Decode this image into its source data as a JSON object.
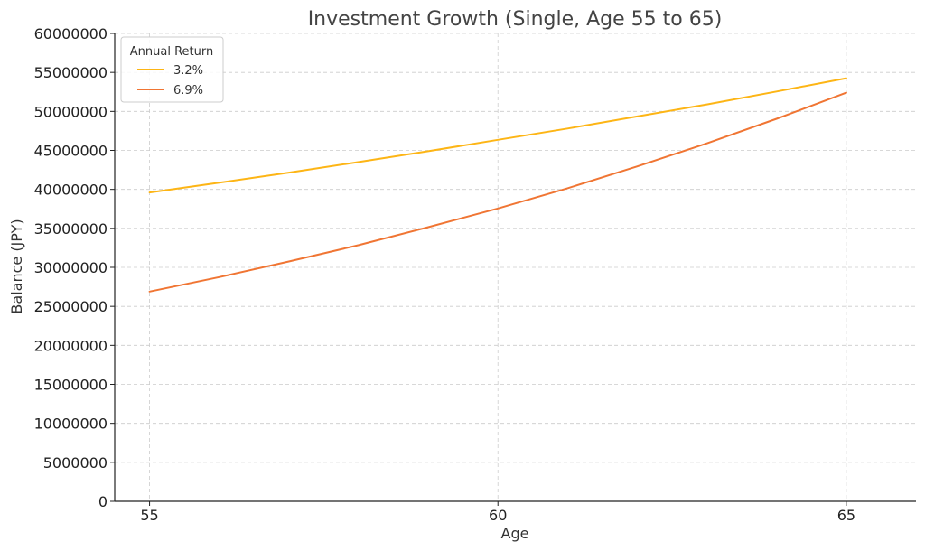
{
  "chart_data": {
    "type": "line",
    "title": "Investment Growth (Single, Age 55 to 65)",
    "xlabel": "Age",
    "ylabel": "Balance (JPY)",
    "xlim": [
      54.5,
      66.0
    ],
    "ylim": [
      0,
      60000000
    ],
    "xticks": [
      55,
      60,
      65
    ],
    "yticks": [
      0,
      5000000,
      10000000,
      15000000,
      20000000,
      25000000,
      30000000,
      35000000,
      40000000,
      45000000,
      50000000,
      55000000,
      60000000
    ],
    "grid": true,
    "legend": {
      "title": "Annual Return",
      "placement": "top-left"
    },
    "series": [
      {
        "name": "3.2%",
        "color": "#FDB515",
        "x": [
          55,
          56,
          57,
          58,
          59,
          60,
          61,
          62,
          63,
          64,
          65
        ],
        "y": [
          39600000,
          40850000,
          42150000,
          43500000,
          44900000,
          46350000,
          47800000,
          49350000,
          50900000,
          52550000,
          54250000
        ]
      },
      {
        "name": "6.9%",
        "color": "#F07533",
        "x": [
          55,
          56,
          57,
          58,
          59,
          60,
          61,
          62,
          63,
          64,
          65
        ],
        "y": [
          26900000,
          28750000,
          30750000,
          32850000,
          35150000,
          37550000,
          40150000,
          42950000,
          45900000,
          49050000,
          52400000
        ]
      }
    ]
  }
}
